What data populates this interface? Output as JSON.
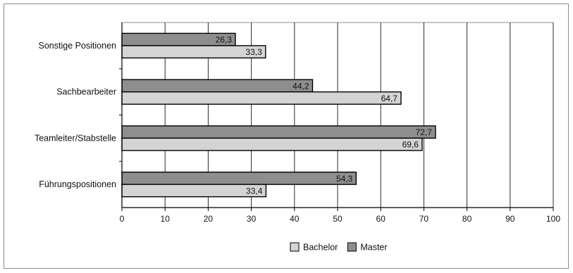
{
  "chart_data": {
    "type": "bar",
    "orientation": "horizontal",
    "categories": [
      "Sonstige Positionen",
      "Sachbearbeiter",
      "Teamleiter/Stabstelle",
      "Führungspositionen"
    ],
    "series": [
      {
        "name": "Master",
        "values": [
          26.3,
          44.2,
          72.7,
          54.3
        ],
        "color": "#8e8e8e"
      },
      {
        "name": "Bachelor",
        "values": [
          33.3,
          64.7,
          69.6,
          33.4
        ],
        "color": "#d4d4d4"
      }
    ],
    "value_labels": {
      "Master": [
        "26,3",
        "44,2",
        "72,7",
        "54,3"
      ],
      "Bachelor": [
        "33,3",
        "64,7",
        "69,6",
        "33,4"
      ]
    },
    "xlim": [
      0,
      100
    ],
    "xticks": [
      0,
      10,
      20,
      30,
      40,
      50,
      60,
      70,
      80,
      90,
      100
    ],
    "grid": true,
    "legend": {
      "position": "bottom",
      "entries": [
        "Bachelor",
        "Master"
      ]
    },
    "title": "",
    "xlabel": "",
    "ylabel": ""
  }
}
